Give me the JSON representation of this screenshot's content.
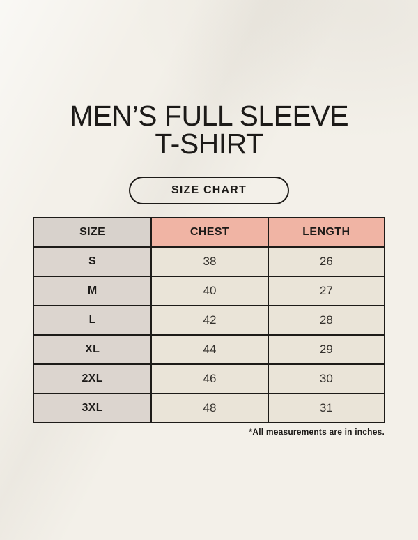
{
  "page": {
    "title_line1": "MEN’S FULL SLEEVE",
    "title_line2": "T-SHIRT",
    "badge_label": "SIZE CHART",
    "footnote": "*All measurements are in inches."
  },
  "colors": {
    "page_bg": "#f3f0e9",
    "header_pink": "#f0b4a4",
    "header_gray": "#d8d2cc",
    "size_col_gray": "#dcd5cf",
    "cell_cream": "#eae4d8",
    "border": "#1d1b18",
    "text": "#1c1a18",
    "number_text": "#34312d"
  },
  "chart_data": {
    "type": "table",
    "title": "MEN’S FULL SLEEVE T-SHIRT",
    "subtitle": "SIZE CHART",
    "headers": [
      "SIZE",
      "CHEST",
      "LENGTH"
    ],
    "rows": [
      [
        "S",
        "38",
        "26"
      ],
      [
        "M",
        "40",
        "27"
      ],
      [
        "L",
        "42",
        "28"
      ],
      [
        "XL",
        "44",
        "29"
      ],
      [
        "2XL",
        "46",
        "30"
      ],
      [
        "3XL",
        "48",
        "31"
      ]
    ],
    "note": "*All measurements are in inches.",
    "units": "inches"
  }
}
